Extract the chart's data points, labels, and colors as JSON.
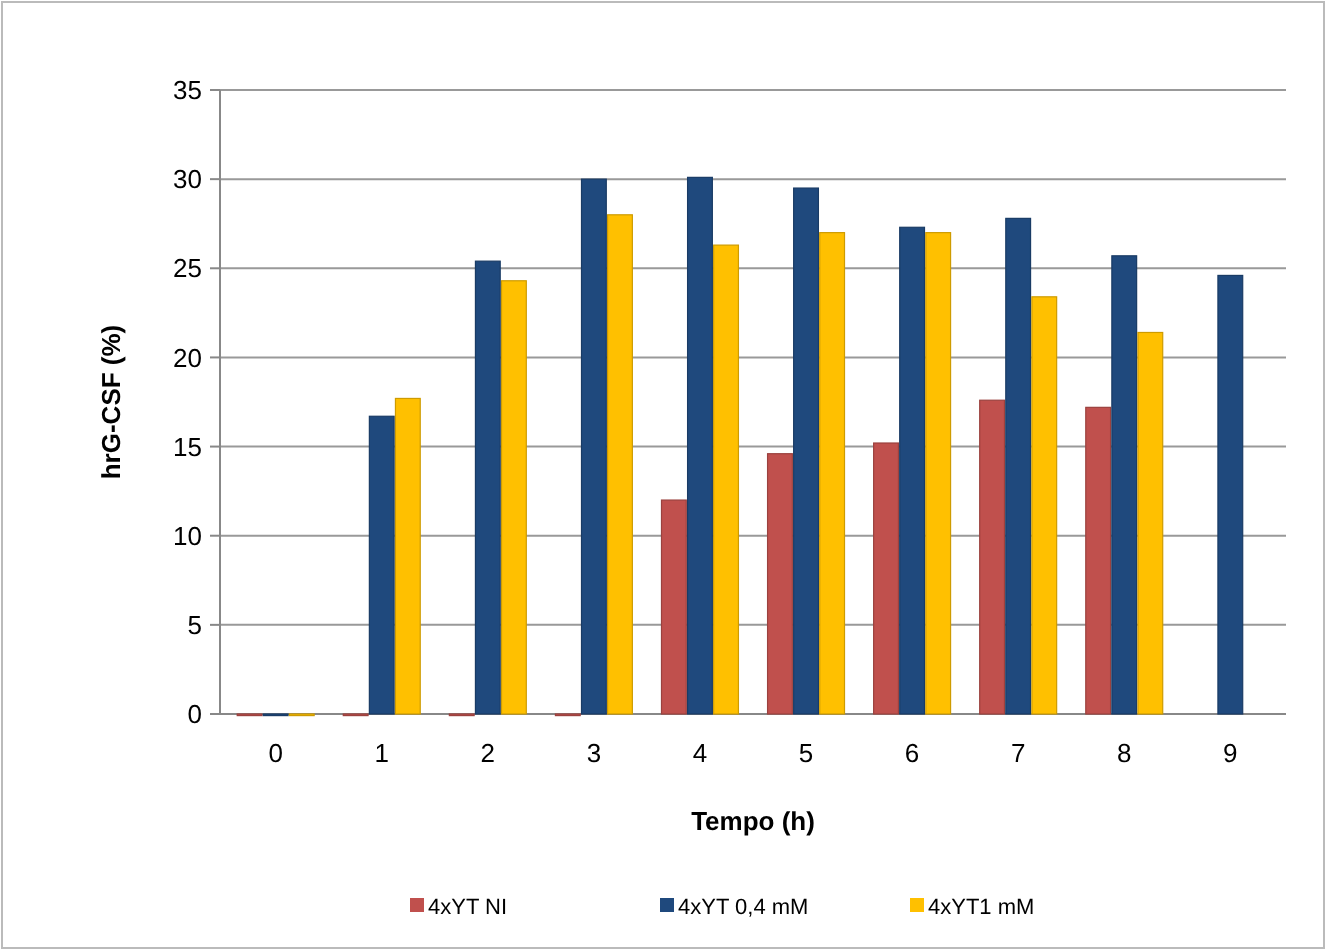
{
  "chart_data": {
    "type": "bar",
    "xlabel": "Tempo (h)",
    "ylabel": "hrG-CSF (%)",
    "categories": [
      "0",
      "1",
      "2",
      "3",
      "4",
      "5",
      "6",
      "7",
      "8",
      "9"
    ],
    "series": [
      {
        "name": "4xYT NI",
        "color": "#c0504d",
        "values": [
          0,
          0,
          0,
          0,
          12,
          14.6,
          15.2,
          17.6,
          17.2,
          null
        ]
      },
      {
        "name": "4xYT 0,4 mM",
        "color": "#1f497d",
        "values": [
          0,
          16.7,
          25.4,
          30,
          30.1,
          29.5,
          27.3,
          27.8,
          25.7,
          24.6
        ]
      },
      {
        "name": "4xYT1 mM",
        "color": "#ffc000",
        "values": [
          0,
          17.7,
          24.3,
          28,
          26.3,
          27,
          27,
          23.4,
          21.4,
          null
        ]
      }
    ],
    "ylim": [
      0,
      35
    ],
    "yticks": [
      0,
      5,
      10,
      15,
      20,
      25,
      30,
      35
    ],
    "grid": "y",
    "legend": "bottom"
  }
}
